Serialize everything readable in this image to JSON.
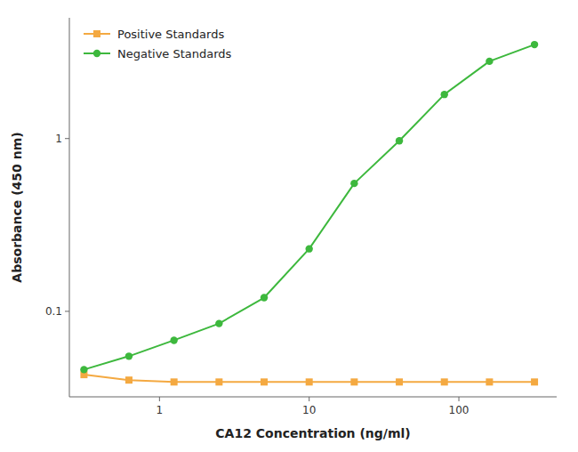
{
  "chart_data": {
    "type": "line",
    "x": [
      0.313,
      0.625,
      1.25,
      2.5,
      5.0,
      10.0,
      20.0,
      40.0,
      80.0,
      160.0,
      320.0
    ],
    "series": [
      {
        "name": "Positive Standards",
        "color": "#F4A941",
        "marker": "square",
        "values": [
          0.043,
          0.04,
          0.039,
          0.039,
          0.039,
          0.039,
          0.039,
          0.039,
          0.039,
          0.039,
          0.039
        ]
      },
      {
        "name": "Negative Standards",
        "color": "#3DB83D",
        "marker": "circle",
        "values": [
          0.046,
          0.055,
          0.068,
          0.085,
          0.12,
          0.23,
          0.55,
          0.97,
          1.8,
          2.8,
          3.5
        ]
      }
    ],
    "xlabel": "CA12 Concentration (ng/ml)",
    "ylabel": "Absorbance (450 nm)",
    "xlim": [
      0.25,
      450
    ],
    "ylim": [
      0.032,
      5.0
    ],
    "xticks": [
      1,
      10,
      100
    ],
    "yticks": [
      0.1,
      1
    ],
    "log": true,
    "grid": false,
    "legend": "upper left"
  }
}
